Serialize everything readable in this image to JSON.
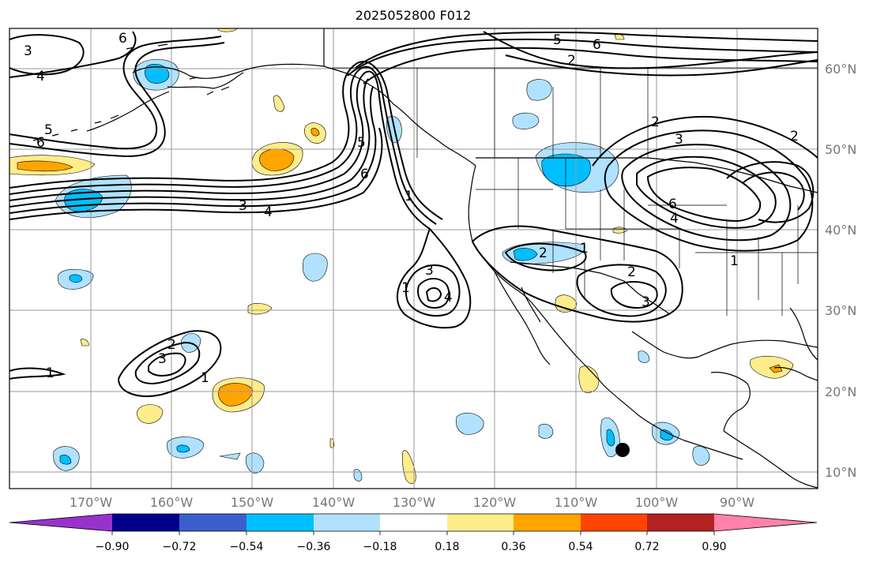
{
  "title": "2025052800 F012",
  "lon_ticks": [
    "170°W",
    "160°W",
    "150°W",
    "140°W",
    "130°W",
    "120°W",
    "110°W",
    "100°W",
    "90°W"
  ],
  "lat_ticks": [
    "10°N",
    "20°N",
    "30°N",
    "40°N",
    "50°N",
    "60°N"
  ],
  "colorbar": {
    "colors": [
      "#9932cc",
      "#00008b",
      "#3a5fcd",
      "#00bfff",
      "#b0e2ff",
      "#ffffff",
      "#ffec8b",
      "#ffa500",
      "#ff4500",
      "#b22222",
      "#ff82ab"
    ],
    "ticks": [
      "−0.90",
      "−0.72",
      "−0.54",
      "−0.36",
      "−0.18",
      "0.18",
      "0.36",
      "0.54",
      "0.72",
      "0.90"
    ],
    "extend": "both"
  },
  "contour_labels": [
    {
      "text": "6"
    },
    {
      "text": "3"
    },
    {
      "text": "4"
    },
    {
      "text": "5"
    },
    {
      "text": "6"
    },
    {
      "text": "5"
    },
    {
      "text": "6"
    },
    {
      "text": "2"
    },
    {
      "text": "5"
    },
    {
      "text": "6"
    },
    {
      "text": "1"
    },
    {
      "text": "3"
    },
    {
      "text": "4"
    },
    {
      "text": "3"
    },
    {
      "text": "4"
    },
    {
      "text": "1"
    },
    {
      "text": "2"
    },
    {
      "text": "1"
    },
    {
      "text": "2"
    },
    {
      "text": "3"
    },
    {
      "text": "2"
    },
    {
      "text": "3"
    },
    {
      "text": "1"
    },
    {
      "text": "2"
    },
    {
      "text": "3"
    },
    {
      "text": "6"
    },
    {
      "text": "4"
    },
    {
      "text": "1"
    },
    {
      "text": "2"
    }
  ],
  "marker": {
    "label": "black-dot",
    "lon": -104,
    "lat": 13
  },
  "colors": {
    "contour": "#000000",
    "grid": "#999999",
    "border": "#000000"
  }
}
